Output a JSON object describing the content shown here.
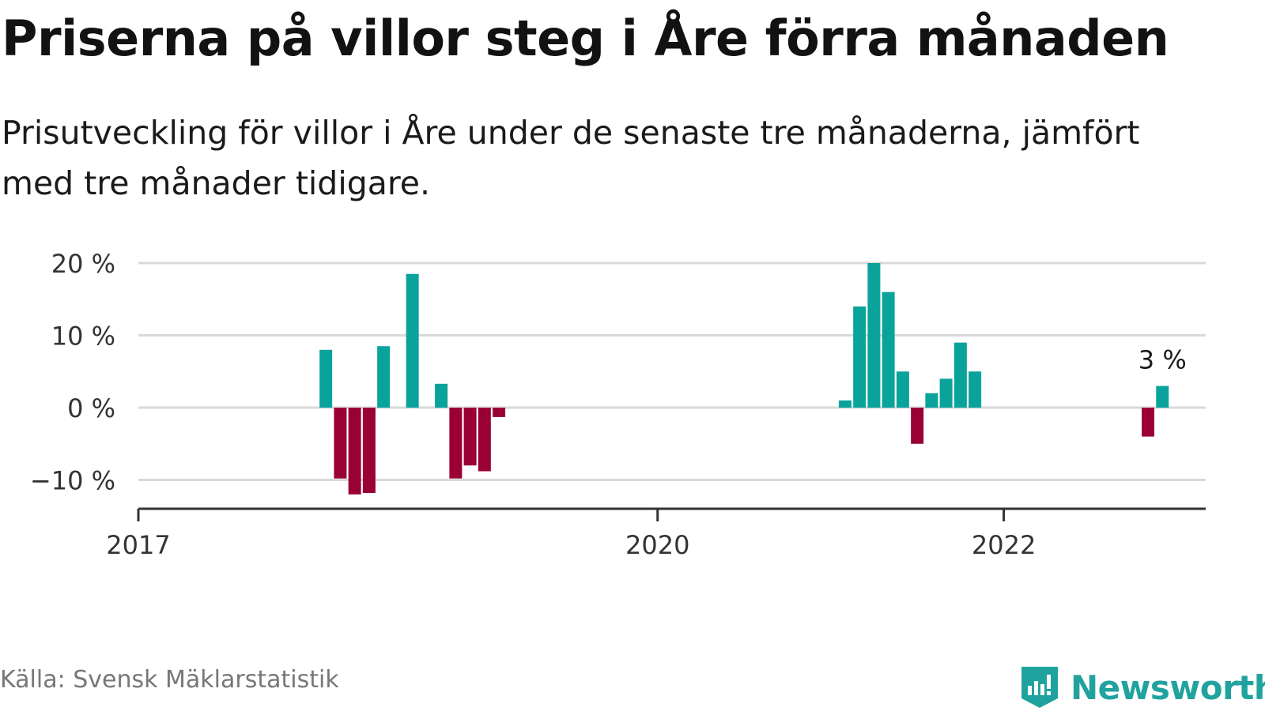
{
  "header": {
    "title": "Priserna på villor steg i Åre förra månaden",
    "subtitle": "Prisutveckling för villor i Åre under de senaste tre månaderna, jämfört med tre månader tidigare."
  },
  "footer": {
    "source": "Källa: Svensk Mäklarstatistik",
    "brand": "Newsworthy"
  },
  "colors": {
    "positive": "#0aa39b",
    "negative": "#9a0036",
    "grid": "#d9d9d9",
    "axis": "#333333",
    "brand": "#20a39e"
  },
  "chart_data": {
    "type": "bar",
    "title": "Priserna på villor steg i Åre förra månaden",
    "subtitle": "Prisutveckling för villor i Åre under de senaste tre månaderna, jämfört med tre månader tidigare.",
    "ylim": [
      -14,
      20
    ],
    "yticks": [
      {
        "value": 20,
        "label": "20 %"
      },
      {
        "value": 10,
        "label": "10 %"
      },
      {
        "value": 0,
        "label": "0 %"
      },
      {
        "value": -10,
        "label": "−10 %"
      }
    ],
    "xlim": [
      "2017-01",
      "2023-03"
    ],
    "xticks": [
      {
        "value": "2017-01",
        "label": "2017"
      },
      {
        "value": "2020-01",
        "label": "2020"
      },
      {
        "value": "2022-01",
        "label": "2022"
      }
    ],
    "grid": true,
    "annotation": {
      "x": "2022-12",
      "label": "3 %"
    },
    "series": [
      {
        "x": [
          "2018-02",
          "2018-03",
          "2018-04",
          "2018-05",
          "2018-06",
          "2018-08",
          "2018-10",
          "2018-11",
          "2018-12",
          "2019-01",
          "2019-02",
          "2021-02",
          "2021-03",
          "2021-04",
          "2021-05",
          "2021-06",
          "2021-07",
          "2021-08",
          "2021-09",
          "2021-10",
          "2021-11",
          "2022-11",
          "2022-12"
        ],
        "values": [
          8,
          -9.8,
          -12,
          -11.8,
          8.5,
          18.5,
          3.3,
          -9.8,
          -8,
          -8.8,
          -1.3,
          1,
          14,
          20,
          16,
          5,
          -5,
          2,
          4,
          9,
          5,
          -4,
          3
        ]
      }
    ]
  }
}
